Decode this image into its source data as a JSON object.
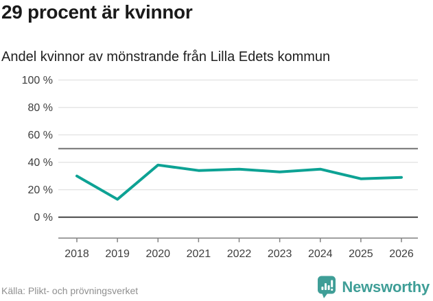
{
  "header": {
    "title": "29 procent är kvinnor",
    "subtitle": "Andel kvinnor av mönstrande från Lilla Edets kommun"
  },
  "footer": {
    "source": "Källa: Plikt- och prövningsverket",
    "brand_name": "Newsworthy",
    "brand_icon": "bar-chart-speech-bubble-icon"
  },
  "colors": {
    "line": "#0da294",
    "brand_teal": "#3f9e97",
    "grid_light": "#e4e4e4",
    "grid_reference": "#707070",
    "grid_zero": "#454545",
    "axis": "#808080",
    "axis_label": "#3d3d3d",
    "title_text": "#1a1a1a",
    "subtitle_text": "#202020",
    "source_text": "#8f8f8f"
  },
  "chart_data": {
    "type": "line",
    "title": "29 procent är kvinnor",
    "subtitle": "Andel kvinnor av mönstrande från Lilla Edets kommun",
    "x": [
      2018,
      2019,
      2020,
      2021,
      2022,
      2023,
      2024,
      2025,
      2026
    ],
    "series": [
      {
        "name": "Andel kvinnor av mönstrande",
        "color": "#0da294",
        "values": [
          30,
          13,
          38,
          34,
          35,
          33,
          35,
          28,
          29
        ]
      }
    ],
    "xlabel": "",
    "ylabel": "",
    "ylim": [
      0,
      100
    ],
    "yticks": [
      0,
      20,
      40,
      60,
      80,
      100
    ],
    "ytick_suffix": " %",
    "reference_line_y": 50,
    "grid": "horizontal",
    "legend": "none",
    "unit": "%"
  }
}
